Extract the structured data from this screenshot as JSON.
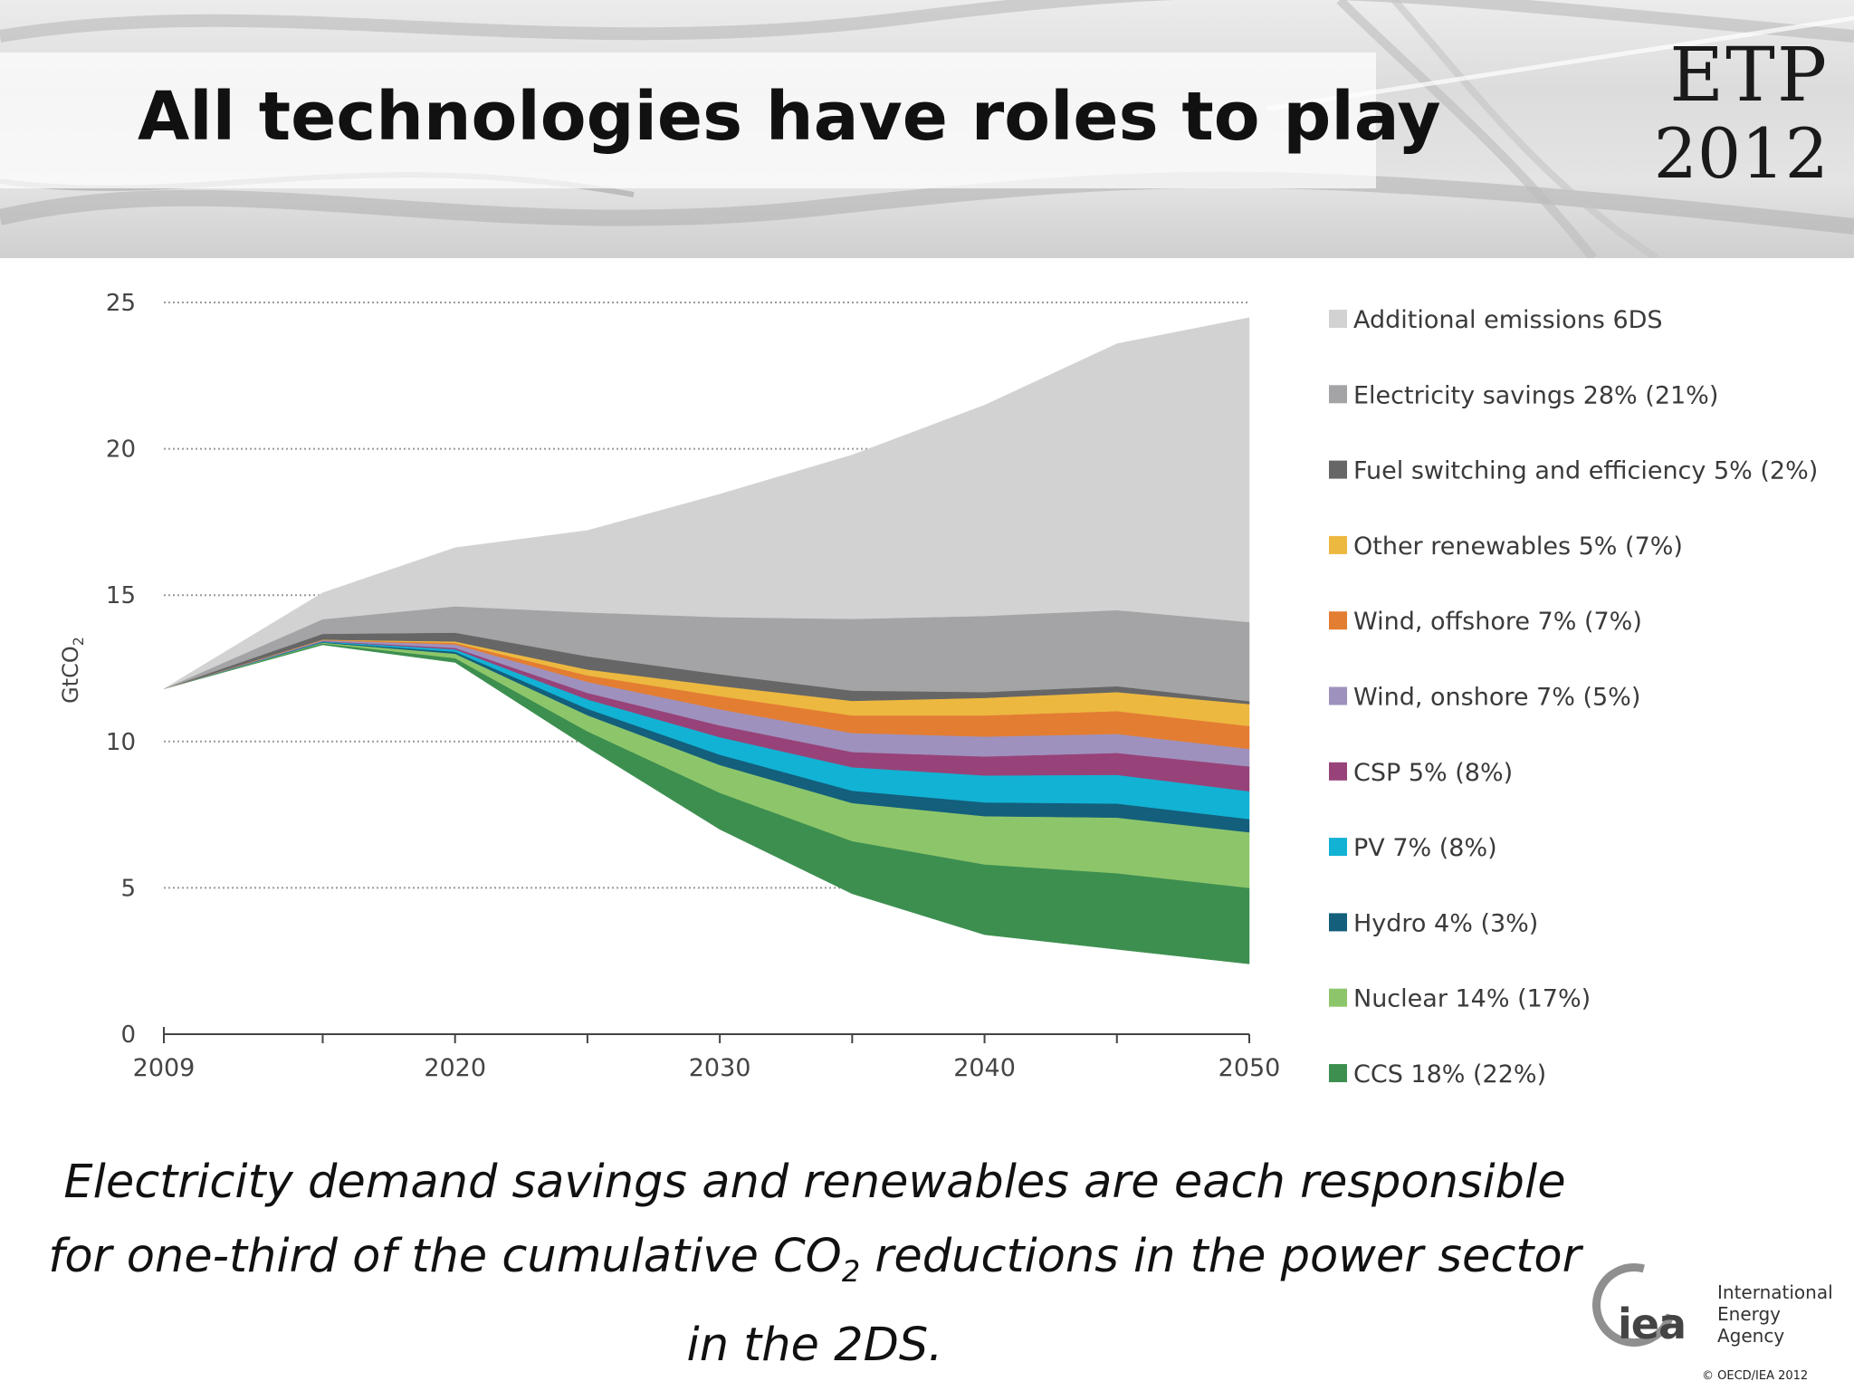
{
  "slide": {
    "title": "All technologies have roles to play",
    "etp_line1": "ETP",
    "etp_line2": "2012",
    "caption_part1": "Electricity demand savings and renewables are each responsible for one-third of the cumulative CO",
    "caption_sub": "2",
    "caption_part2": " reductions in the power sector in the 2DS.",
    "iea_mark": "iea",
    "iea_name_line1": "International",
    "iea_name_line2": "Energy Agency",
    "copyright": "© OECD/IEA 2012"
  },
  "chart_data": {
    "type": "area",
    "stacked": true,
    "title": "",
    "xlabel": "",
    "ylabel": "GtCO",
    "ylabel_sub": "2",
    "x": [
      2009,
      2015,
      2020,
      2025,
      2030,
      2035,
      2040,
      2045,
      2050
    ],
    "xticks": [
      2009,
      2020,
      2030,
      2040,
      2050
    ],
    "xlim": [
      2009,
      2050
    ],
    "yticks": [
      0,
      5,
      10,
      15,
      20,
      25
    ],
    "ylim": [
      0,
      25
    ],
    "grid": "horizontal-dotted",
    "legend_position": "right",
    "baseline": [
      11.8,
      13.3,
      12.7,
      9.8,
      7.0,
      4.8,
      3.4,
      2.9,
      2.4
    ],
    "series": [
      {
        "name": "CCS 18%  (22%)",
        "color": "#3d8f50",
        "values": [
          0,
          0.05,
          0.15,
          0.55,
          1.25,
          1.8,
          2.4,
          2.6,
          2.6
        ]
      },
      {
        "name": "Nuclear 14%  (17%)",
        "color": "#8dc66a",
        "values": [
          0,
          0.03,
          0.15,
          0.55,
          0.95,
          1.3,
          1.65,
          1.9,
          1.9
        ]
      },
      {
        "name": "Hydro 4%  (3%)",
        "color": "#135f7c",
        "values": [
          0,
          0.02,
          0.07,
          0.22,
          0.35,
          0.42,
          0.47,
          0.48,
          0.45
        ]
      },
      {
        "name": "PV 7%  (8%)",
        "color": "#12b2d4",
        "values": [
          0,
          0.02,
          0.08,
          0.32,
          0.6,
          0.8,
          0.92,
          0.98,
          0.95
        ]
      },
      {
        "name": "CSP 5%  (8%)",
        "color": "#974379",
        "values": [
          0,
          0.01,
          0.05,
          0.22,
          0.4,
          0.52,
          0.65,
          0.75,
          0.85
        ]
      },
      {
        "name": "Wind, onshore 7%  (5%)",
        "color": "#9f91bd",
        "values": [
          0,
          0.03,
          0.12,
          0.38,
          0.55,
          0.65,
          0.68,
          0.65,
          0.6
        ]
      },
      {
        "name": "Wind, offshore 7%  (7%)",
        "color": "#e37d32",
        "values": [
          0,
          0.01,
          0.05,
          0.22,
          0.45,
          0.6,
          0.72,
          0.78,
          0.78
        ]
      },
      {
        "name": "Other renewables 5% (7%)",
        "color": "#edb840",
        "values": [
          0,
          0.01,
          0.05,
          0.2,
          0.35,
          0.5,
          0.6,
          0.65,
          0.75
        ]
      },
      {
        "name": "Fuel switching and efficiency 5% (2%)",
        "color": "#666666",
        "values": [
          0,
          0.2,
          0.3,
          0.45,
          0.4,
          0.35,
          0.2,
          0.2,
          0.1
        ]
      },
      {
        "name": "Electricity savings 28%  (21%)",
        "color": "#a4a4a7",
        "values": [
          0,
          0.5,
          0.9,
          1.5,
          1.95,
          2.45,
          2.6,
          2.6,
          2.7
        ]
      },
      {
        "name": "Additional emissions 6DS",
        "color": "#d2d2d3",
        "values": [
          0,
          0.9,
          2.0,
          2.8,
          4.2,
          5.6,
          7.2,
          9.1,
          10.4
        ]
      }
    ]
  }
}
